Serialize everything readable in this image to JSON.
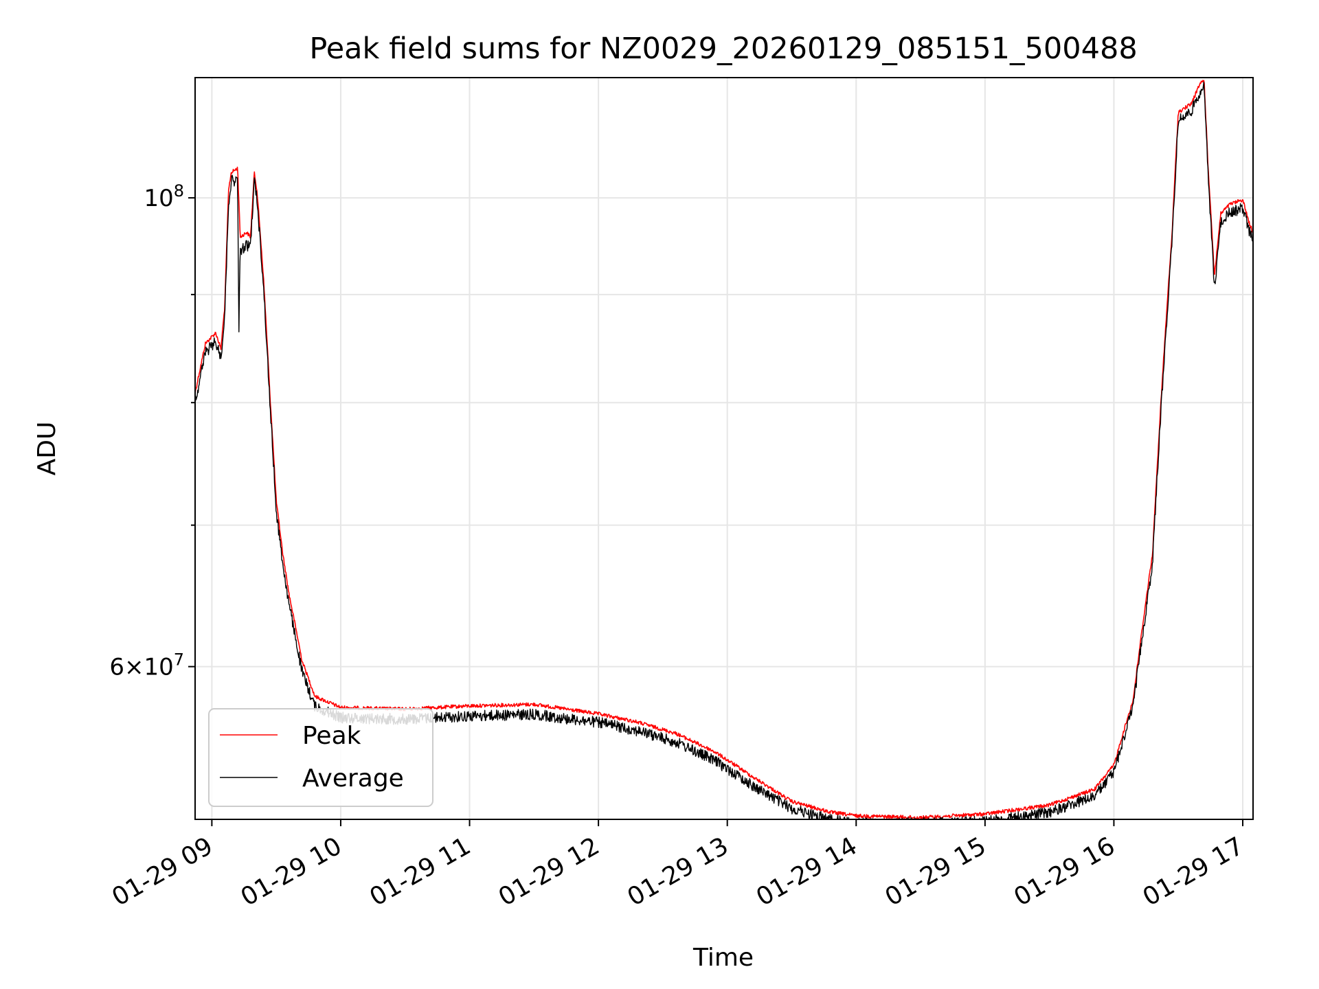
{
  "chart_data": {
    "type": "line",
    "title": "Peak field sums for NZ0029_20260129_085151_500488",
    "xlabel": "Time",
    "ylabel": "ADU",
    "yscale": "log",
    "xlim_hours": [
      8.87,
      17.08
    ],
    "ylim": [
      50800000,
      114000000
    ],
    "x_ticks": [
      {
        "value": 9,
        "label": "01-29 09"
      },
      {
        "value": 10,
        "label": "01-29 10"
      },
      {
        "value": 11,
        "label": "01-29 11"
      },
      {
        "value": 12,
        "label": "01-29 12"
      },
      {
        "value": 13,
        "label": "01-29 13"
      },
      {
        "value": 14,
        "label": "01-29 14"
      },
      {
        "value": 15,
        "label": "01-29 15"
      },
      {
        "value": 16,
        "label": "01-29 16"
      },
      {
        "value": 17,
        "label": "01-29 17"
      }
    ],
    "y_major_ticks": [
      {
        "value": 60000000,
        "mantissa": "6",
        "exponent": "7"
      },
      {
        "value": 100000000,
        "mantissa": "",
        "exponent": "8"
      }
    ],
    "y_minor_ticks": [
      70000000,
      80000000,
      90000000
    ],
    "grid": true,
    "legend": {
      "position": "lower-left"
    },
    "series": [
      {
        "name": "Peak",
        "color": "#ff0000",
        "x": [
          8.87,
          8.95,
          9.03,
          9.07,
          9.1,
          9.13,
          9.15,
          9.2,
          9.22,
          9.27,
          9.3,
          9.33,
          9.35,
          9.4,
          9.45,
          9.5,
          9.55,
          9.6,
          9.7,
          9.8,
          10.0,
          10.5,
          11.0,
          11.5,
          12.0,
          12.3,
          12.6,
          12.9,
          13.2,
          13.5,
          13.8,
          14.0,
          14.5,
          15.0,
          15.5,
          15.85,
          16.0,
          16.15,
          16.3,
          16.45,
          16.5,
          16.6,
          16.67,
          16.7,
          16.73,
          16.78,
          16.83,
          16.9,
          17.0,
          17.05,
          17.08
        ],
        "y": [
          81000000,
          85500000,
          86500000,
          85000000,
          89000000,
          101000000,
          103000000,
          103500000,
          96000000,
          96500000,
          96000000,
          103000000,
          101000000,
          92000000,
          81000000,
          72000000,
          68000000,
          65000000,
          60500000,
          58200000,
          57500000,
          57400000,
          57600000,
          57700000,
          57100000,
          56600000,
          55900000,
          54800000,
          53300000,
          51900000,
          51300000,
          51100000,
          51000000,
          51200000,
          51700000,
          52600000,
          54000000,
          58000000,
          68000000,
          96000000,
          110000000,
          111000000,
          113500000,
          114000000,
          104000000,
          92000000,
          98500000,
          99500000,
          100000000,
          97500000,
          96500000
        ]
      },
      {
        "name": "Average",
        "color": "#000000",
        "x": [
          8.87,
          8.95,
          9.03,
          9.07,
          9.1,
          9.13,
          9.15,
          9.2,
          9.21,
          9.22,
          9.27,
          9.3,
          9.33,
          9.35,
          9.4,
          9.45,
          9.5,
          9.55,
          9.6,
          9.7,
          9.8,
          10.0,
          10.5,
          11.0,
          11.5,
          12.0,
          12.3,
          12.6,
          12.9,
          13.2,
          13.5,
          13.8,
          14.0,
          14.5,
          15.0,
          15.5,
          15.85,
          16.0,
          16.15,
          16.3,
          16.45,
          16.5,
          16.6,
          16.67,
          16.7,
          16.73,
          16.78,
          16.83,
          16.9,
          17.0,
          17.05,
          17.08
        ],
        "y": [
          80500000,
          85000000,
          86000000,
          84500000,
          88500000,
          100000000,
          102500000,
          102500000,
          87000000,
          95000000,
          95500000,
          95500000,
          102500000,
          100500000,
          91500000,
          80500000,
          71500000,
          67500000,
          64500000,
          60000000,
          57800000,
          57100000,
          57000000,
          57200000,
          57300000,
          56800000,
          56300000,
          55600000,
          54500000,
          53000000,
          51700000,
          51100000,
          50900000,
          50900000,
          51000000,
          51500000,
          52400000,
          53800000,
          57800000,
          67500000,
          95500000,
          109500000,
          110500000,
          113000000,
          113500000,
          103500000,
          91000000,
          98000000,
          99000000,
          99500000,
          97000000,
          96000000
        ]
      }
    ]
  }
}
